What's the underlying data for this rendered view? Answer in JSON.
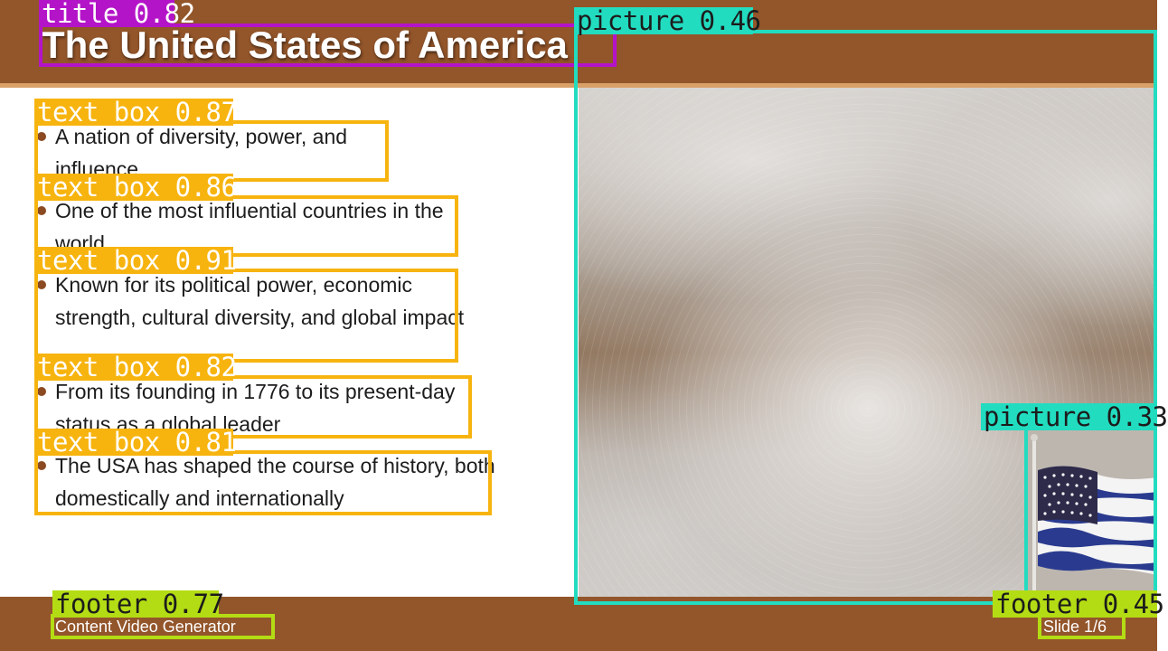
{
  "slide": {
    "title": "The United States of America",
    "bullets": [
      "A nation of diversity, power, and influence",
      "One of the most influential countries in the world",
      "Known for its political power, economic strength, cultural diversity, and global impact",
      "From its founding in 1776 to its present-day status as a global leader",
      "The USA has shaped the course of history, both domestically and internationally"
    ],
    "footer_left": "Content Video Generator",
    "footer_right": "Slide 1/6"
  },
  "detections": {
    "title": "title 0.82",
    "text_boxes": [
      "text box 0.87",
      "text box 0.86",
      "text box 0.91",
      "text box 0.82",
      "text box 0.81"
    ],
    "picture_main": "picture 0.46",
    "picture_flag": "picture 0.33",
    "footer_left": "footer 0.77",
    "footer_right": "footer 0.45"
  },
  "colors": {
    "theme_brown": "#93552a",
    "accent_tan": "#d9a068",
    "title_box": "#b414c8",
    "text_box": "#f7b40f",
    "picture_box": "#22dcc0",
    "footer_box": "#b4dc14"
  },
  "icons": [
    "bullet-dot-icon",
    "american-flag-icon"
  ]
}
